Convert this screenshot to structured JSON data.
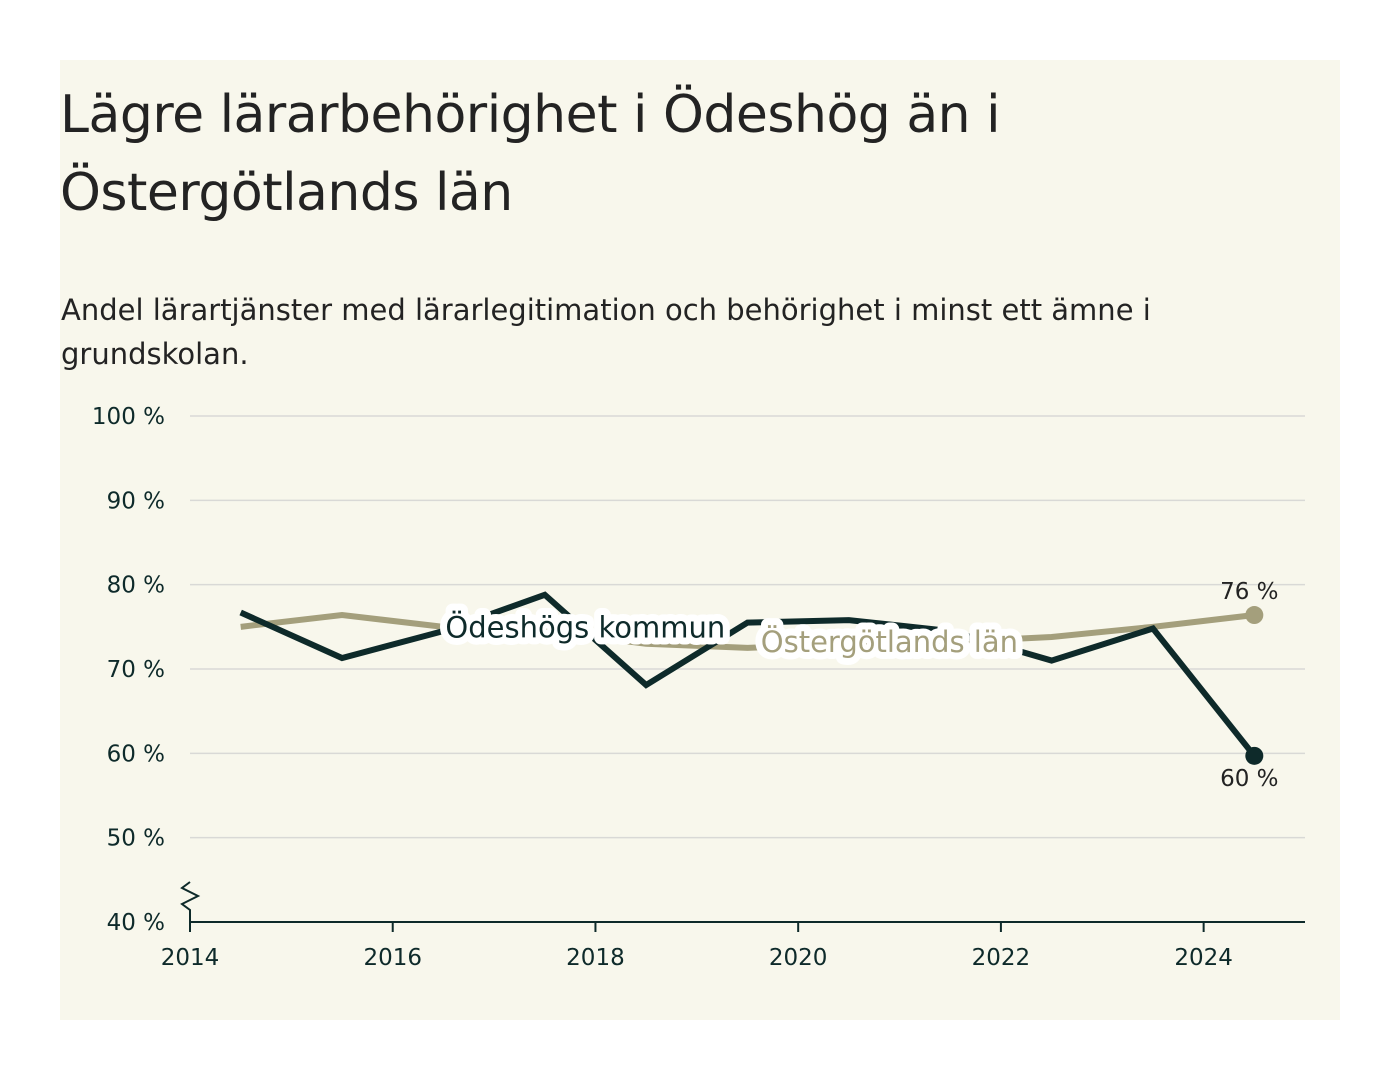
{
  "chart_data": {
    "type": "line",
    "title": "Lägre lärarbehörighet i Ödeshög än i Östergötlands län",
    "subtitle": "Andel lärartjänster med lärarlegitimation och behörighet i minst ett ämne i grundskolan.",
    "xlabel": "",
    "ylabel": "",
    "x": [
      2014.5,
      2015.5,
      2016.5,
      2017.5,
      2018.5,
      2019.5,
      2020.5,
      2021.5,
      2022.5,
      2023.5,
      2024.5
    ],
    "x_ticks": [
      2014,
      2016,
      2018,
      2020,
      2022,
      2024
    ],
    "xlim": [
      2014,
      2025
    ],
    "y_ticks": [
      40,
      50,
      60,
      70,
      80,
      90,
      100
    ],
    "y_tick_labels": [
      "40 %",
      "50 %",
      "60 %",
      "70 %",
      "80 %",
      "90 %",
      "100 %"
    ],
    "ylim": [
      40,
      100
    ],
    "y_axis_break": true,
    "grid": true,
    "legend": "inline",
    "series": [
      {
        "name": "Östergötlands län",
        "color": "#a49f7c",
        "values": [
          75.0,
          76.4,
          75.0,
          74.5,
          73.0,
          72.5,
          73.0,
          73.2,
          73.8,
          75.0,
          76.4
        ],
        "label_position": [
          2020.9,
          73.2
        ],
        "end_label": "76 %"
      },
      {
        "name": "Ödeshögs kommun",
        "color": "#0e2a2a",
        "values": [
          76.7,
          71.3,
          74.5,
          78.8,
          68.1,
          75.5,
          75.8,
          74.5,
          71.0,
          74.8,
          59.7
        ],
        "label_position": [
          2017.9,
          74.9
        ],
        "end_label": "60 %"
      }
    ]
  }
}
